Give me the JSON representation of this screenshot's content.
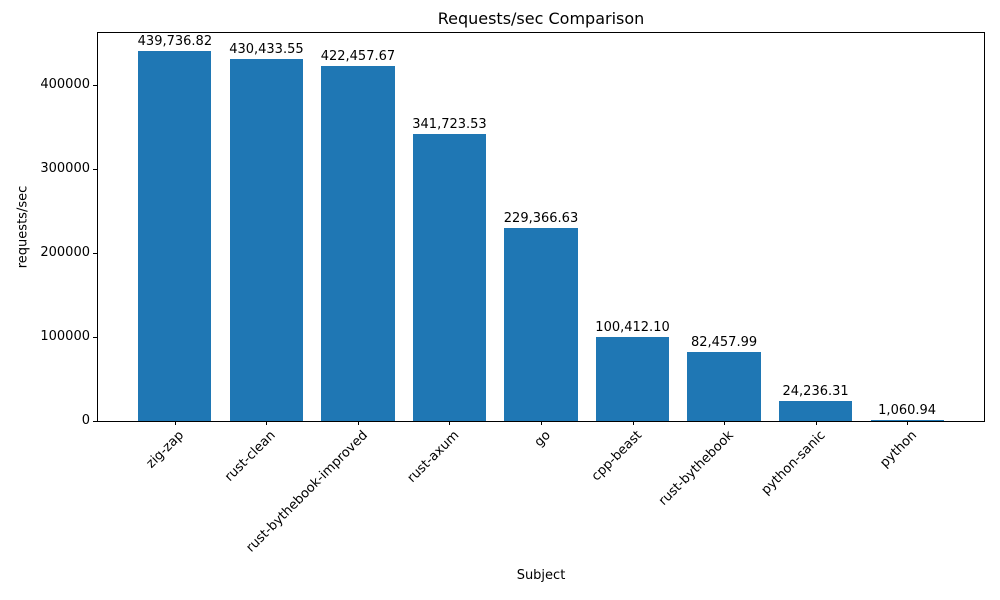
{
  "chart_data": {
    "type": "bar",
    "title": "Requests/sec Comparison",
    "xlabel": "Subject",
    "ylabel": "requests/sec",
    "categories": [
      "zig-zap",
      "rust-clean",
      "rust-bythebook-improved",
      "rust-axum",
      "go",
      "cpp-beast",
      "rust-bythebook",
      "python-sanic",
      "python"
    ],
    "values": [
      439736.82,
      430433.55,
      422457.67,
      341723.53,
      229366.63,
      100412.1,
      82457.99,
      24236.31,
      1060.94
    ],
    "value_labels": [
      "439,736.82",
      "430,433.55",
      "422,457.67",
      "341,723.53",
      "229,366.63",
      "100,412.10",
      "82,457.99",
      "24,236.31",
      "1,060.94"
    ],
    "yticks": [
      0,
      100000,
      200000,
      300000,
      400000
    ],
    "ytick_labels": [
      "0",
      "100000",
      "200000",
      "300000",
      "400000"
    ],
    "ylim": [
      0,
      461723.66
    ],
    "bar_color": "#1f77b4",
    "bar_width": 0.8,
    "x_margin": 0.84,
    "xtick_rotation": 45,
    "grid": false,
    "legend": null
  }
}
